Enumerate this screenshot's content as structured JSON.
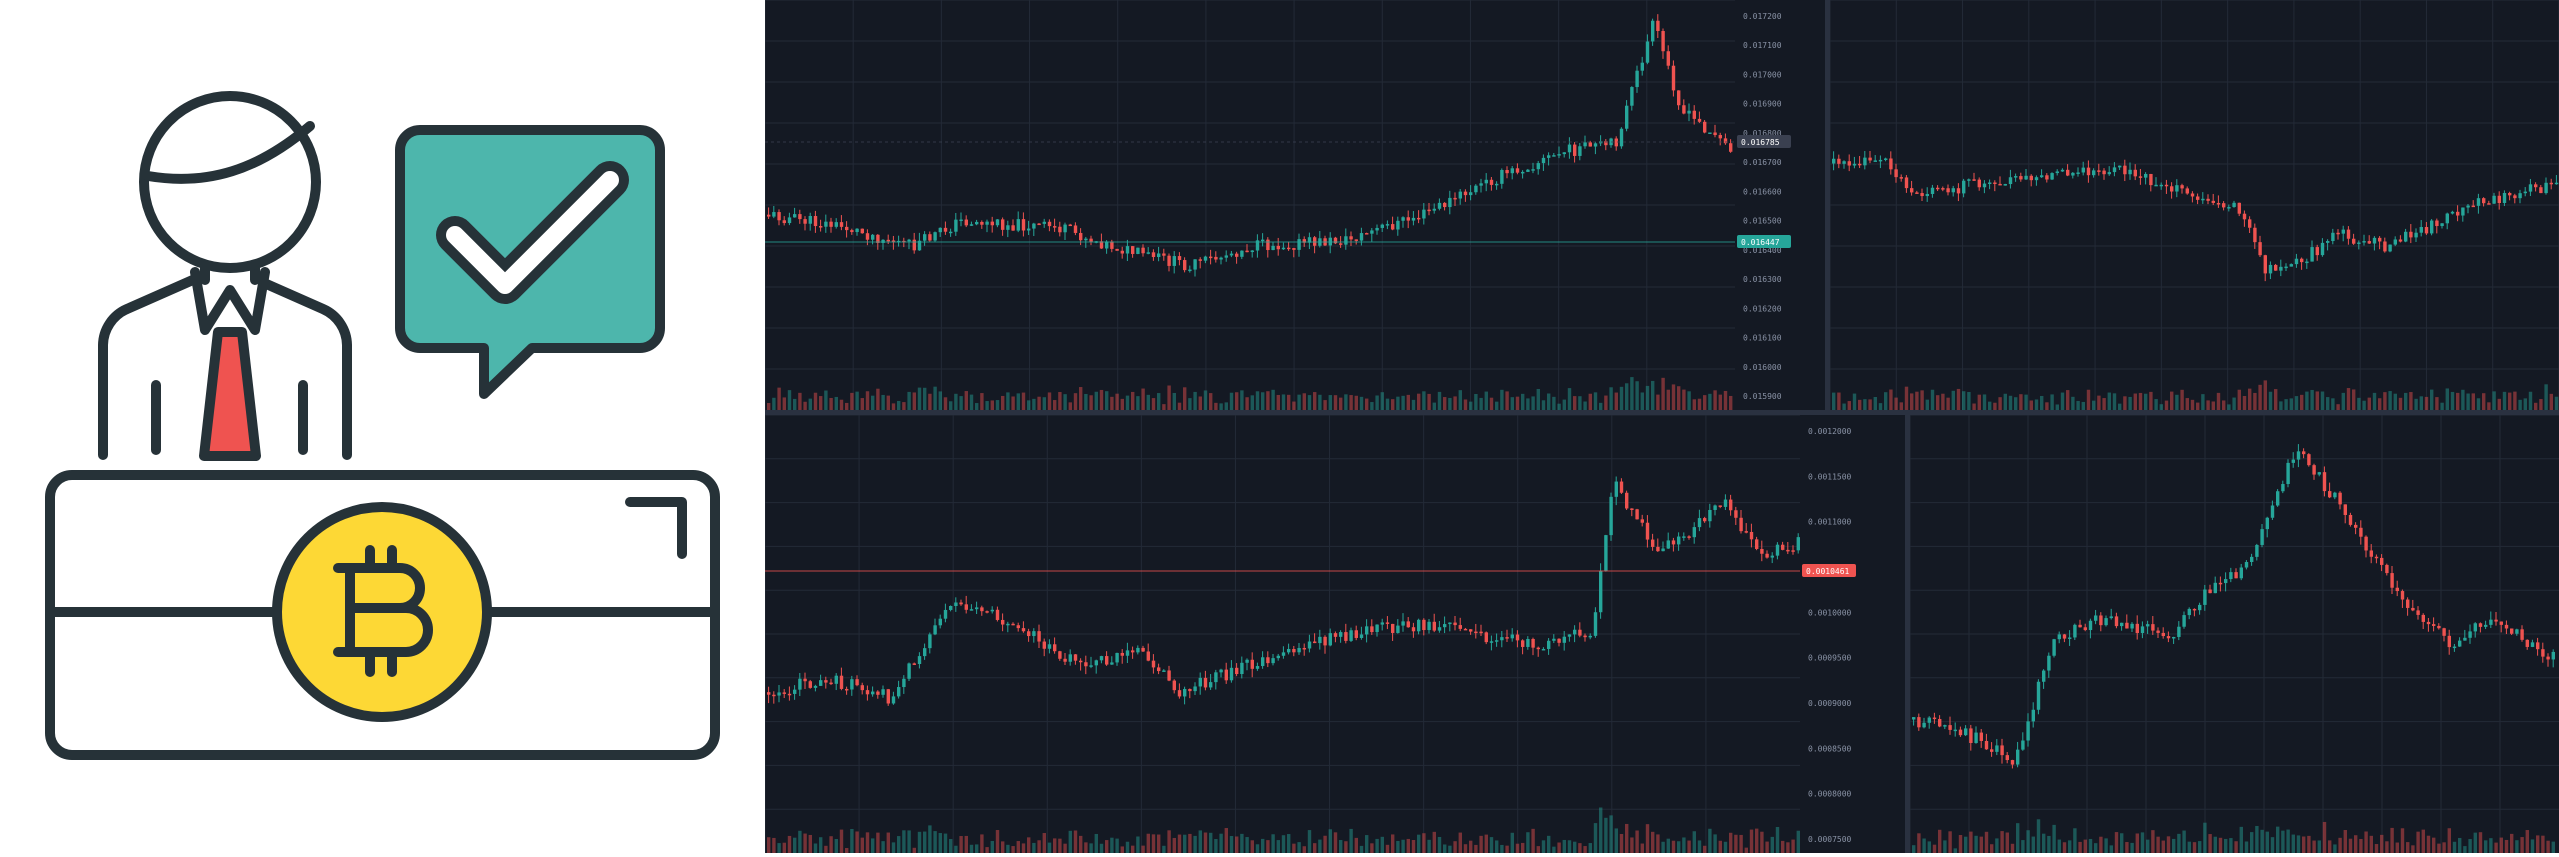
{
  "illustration": {
    "icon": "crypto-exchange-teller-icon",
    "colors": {
      "outline": "#263238",
      "tie": "#ef5350",
      "bubble": "#4db6ac",
      "coin": "#fdd835",
      "desk": "#ffffff"
    },
    "coin_symbol": "bitcoin-icon"
  },
  "charts": {
    "colors": {
      "background": "#141923",
      "grid": "#232a37",
      "up": "#26a69a",
      "down": "#ef5350",
      "axis_text": "#8a93a6"
    },
    "panels": [
      {
        "name": "chart-top-left",
        "price_ticks": [
          "0.017200",
          "0.017100",
          "0.017000",
          "0.016900",
          "0.016800",
          "0.016700",
          "0.016600",
          "0.016500",
          "0.016400",
          "0.016300",
          "0.016200",
          "0.016100",
          "0.016000",
          "0.015900"
        ],
        "tags": [
          {
            "label": "0.016785",
            "color": "#3a4050"
          },
          {
            "label": "0.016447",
            "color": "#26a69a"
          }
        ]
      },
      {
        "name": "chart-top-right",
        "price_ticks": [],
        "tags": []
      },
      {
        "name": "chart-bottom-left",
        "price_ticks": [
          "0.0012000",
          "0.0011500",
          "0.0011000",
          "0.0010500",
          "0.0010000",
          "0.0009500",
          "0.0009000",
          "0.0008500",
          "0.0008000",
          "0.0007500"
        ],
        "tags": [
          {
            "label": "0.0010461",
            "color": "#ef5350"
          }
        ]
      },
      {
        "name": "chart-bottom-right",
        "price_ticks": [],
        "tags": []
      }
    ]
  }
}
